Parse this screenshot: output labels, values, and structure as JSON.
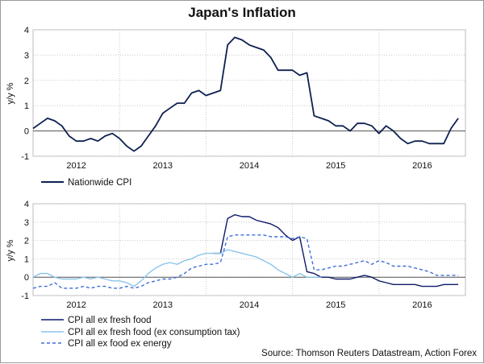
{
  "title": "Japan's Inflation",
  "source": "Source: Thomson Reuters Datastream, Action Forex",
  "chart_data": [
    {
      "type": "line",
      "ylabel": "y/y %",
      "ylim": [
        -1,
        4
      ],
      "yticks": [
        -1,
        0,
        1,
        2,
        3,
        4
      ],
      "xlim": [
        2011.5,
        2016.5
      ],
      "x_tick_labels": [
        "2012",
        "2013",
        "2014",
        "2015",
        "2016"
      ],
      "grid": true,
      "legend": "bottom",
      "series": [
        {
          "name": "Nationwide CPI",
          "color": "#0d2150",
          "style": "solid",
          "x": [
            2011.5,
            2011.583,
            2011.667,
            2011.75,
            2011.833,
            2011.917,
            2012.0,
            2012.083,
            2012.167,
            2012.25,
            2012.333,
            2012.417,
            2012.5,
            2012.583,
            2012.667,
            2012.75,
            2012.833,
            2012.917,
            2013.0,
            2013.083,
            2013.167,
            2013.25,
            2013.333,
            2013.417,
            2013.5,
            2013.583,
            2013.667,
            2013.75,
            2013.833,
            2013.917,
            2014.0,
            2014.083,
            2014.167,
            2014.25,
            2014.333,
            2014.417,
            2014.5,
            2014.583,
            2014.667,
            2014.75,
            2014.833,
            2014.917,
            2015.0,
            2015.083,
            2015.167,
            2015.25,
            2015.333,
            2015.417,
            2015.5,
            2015.583,
            2015.667,
            2015.75,
            2015.833,
            2015.917,
            2016.0,
            2016.083,
            2016.167,
            2016.25,
            2016.333,
            2016.417
          ],
          "values": [
            0.1,
            0.3,
            0.5,
            0.4,
            0.2,
            -0.2,
            -0.4,
            -0.4,
            -0.3,
            -0.4,
            -0.2,
            -0.1,
            -0.3,
            -0.6,
            -0.8,
            -0.6,
            -0.2,
            0.2,
            0.7,
            0.9,
            1.1,
            1.1,
            1.5,
            1.6,
            1.4,
            1.5,
            1.6,
            3.4,
            3.7,
            3.6,
            3.4,
            3.3,
            3.2,
            2.9,
            2.4,
            2.4,
            2.4,
            2.2,
            2.3,
            0.6,
            0.5,
            0.4,
            0.2,
            0.2,
            0.0,
            0.3,
            0.3,
            0.2,
            -0.1,
            0.2,
            0.0,
            -0.3,
            -0.5,
            -0.4,
            -0.4,
            -0.5,
            -0.5,
            -0.5,
            0.1,
            0.5
          ]
        }
      ]
    },
    {
      "type": "line",
      "ylabel": "y/y %",
      "ylim": [
        -1,
        4
      ],
      "yticks": [
        -1,
        0,
        1,
        2,
        3,
        4
      ],
      "xlim": [
        2011.5,
        2016.5
      ],
      "x_tick_labels": [
        "2012",
        "2013",
        "2014",
        "2015",
        "2016"
      ],
      "grid": true,
      "legend": "bottom",
      "series": [
        {
          "name": "CPI all ex fresh food",
          "color": "#0f1a6b",
          "style": "solid",
          "x": [
            2013.583,
            2013.667,
            2013.75,
            2013.833,
            2013.917,
            2014.0,
            2014.083,
            2014.167,
            2014.25,
            2014.333,
            2014.417,
            2014.5,
            2014.583,
            2014.667,
            2014.75,
            2014.833,
            2014.917,
            2015.0,
            2015.083,
            2015.167,
            2015.25,
            2015.333,
            2015.417,
            2015.5,
            2015.583,
            2015.667,
            2015.75,
            2015.833,
            2015.917,
            2016.0,
            2016.083,
            2016.167,
            2016.25,
            2016.333,
            2016.417
          ],
          "values": [
            1.3,
            1.3,
            3.2,
            3.4,
            3.3,
            3.3,
            3.1,
            3.0,
            2.9,
            2.7,
            2.3,
            2.0,
            2.2,
            0.3,
            0.2,
            0.0,
            0.0,
            -0.1,
            -0.1,
            -0.1,
            0.0,
            0.1,
            0.0,
            -0.2,
            -0.3,
            -0.4,
            -0.4,
            -0.4,
            -0.4,
            -0.5,
            -0.5,
            -0.5,
            -0.4,
            -0.4,
            -0.4
          ]
        },
        {
          "name": "CPI all ex fresh food (ex consumption tax)",
          "color": "#8cc4e8",
          "style": "solid",
          "x": [
            2011.5,
            2011.583,
            2011.667,
            2011.75,
            2011.833,
            2011.917,
            2012.0,
            2012.083,
            2012.167,
            2012.25,
            2012.333,
            2012.417,
            2012.5,
            2012.583,
            2012.667,
            2012.75,
            2012.833,
            2012.917,
            2013.0,
            2013.083,
            2013.167,
            2013.25,
            2013.333,
            2013.417,
            2013.5,
            2013.583,
            2013.667,
            2013.75,
            2013.833,
            2013.917,
            2014.0,
            2014.083,
            2014.167,
            2014.25,
            2014.333,
            2014.417,
            2014.5,
            2014.583,
            2014.667,
            2014.75,
            2014.833
          ],
          "values": [
            0.0,
            0.2,
            0.2,
            0.0,
            -0.1,
            -0.1,
            -0.1,
            0.0,
            -0.1,
            0.0,
            -0.1,
            -0.2,
            -0.2,
            -0.3,
            -0.5,
            -0.2,
            0.2,
            0.5,
            0.7,
            0.8,
            0.7,
            0.9,
            1.0,
            1.2,
            1.3,
            1.3,
            1.3,
            1.5,
            1.4,
            1.3,
            1.2,
            1.1,
            0.9,
            0.7,
            0.4,
            0.2,
            0.0,
            0.2,
            0.0,
            0.0,
            0.0
          ]
        },
        {
          "name": "CPI all ex food ex energy",
          "color": "#3f6fd6",
          "style": "dashed",
          "x": [
            2011.5,
            2011.583,
            2011.667,
            2011.75,
            2011.833,
            2011.917,
            2012.0,
            2012.083,
            2012.167,
            2012.25,
            2012.333,
            2012.417,
            2012.5,
            2012.583,
            2012.667,
            2012.75,
            2012.833,
            2012.917,
            2013.0,
            2013.083,
            2013.167,
            2013.25,
            2013.333,
            2013.417,
            2013.5,
            2013.583,
            2013.667,
            2013.75,
            2013.833,
            2013.917,
            2014.0,
            2014.083,
            2014.167,
            2014.25,
            2014.333,
            2014.417,
            2014.5,
            2014.583,
            2014.667,
            2014.75,
            2014.833,
            2014.917,
            2015.0,
            2015.083,
            2015.167,
            2015.25,
            2015.333,
            2015.417,
            2015.5,
            2015.583,
            2015.667,
            2015.75,
            2015.833,
            2015.917,
            2016.0,
            2016.083,
            2016.167,
            2016.25,
            2016.333,
            2016.417
          ],
          "values": [
            -0.6,
            -0.5,
            -0.5,
            -0.3,
            -0.6,
            -0.6,
            -0.6,
            -0.5,
            -0.6,
            -0.5,
            -0.5,
            -0.6,
            -0.6,
            -0.5,
            -0.6,
            -0.5,
            -0.3,
            -0.2,
            -0.1,
            -0.1,
            0.0,
            0.2,
            0.5,
            0.6,
            0.7,
            0.7,
            0.8,
            2.2,
            2.3,
            2.3,
            2.3,
            2.3,
            2.3,
            2.2,
            2.2,
            2.2,
            2.1,
            2.2,
            2.1,
            0.4,
            0.4,
            0.5,
            0.6,
            0.6,
            0.7,
            0.8,
            0.9,
            0.7,
            0.9,
            0.8,
            0.6,
            0.6,
            0.6,
            0.5,
            0.4,
            0.3,
            0.1,
            0.1,
            0.1,
            0.1
          ]
        }
      ]
    }
  ]
}
